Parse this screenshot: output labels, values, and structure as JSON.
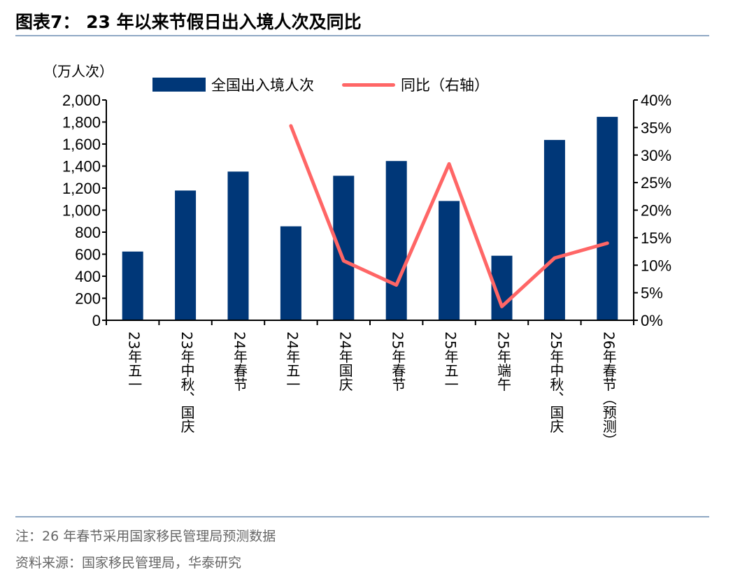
{
  "title": "图表7：  23 年以来节假日出入境人次及同比",
  "unit_label": "（万人次）",
  "note": "注：26 年春节采用国家移民管理局预测数据",
  "source": "资料来源：国家移民管理局，华泰研究",
  "chart_data": {
    "type": "bar+line",
    "categories": [
      "23年五一",
      "23年中秋、国庆",
      "24年春节",
      "24年五一",
      "24年国庆",
      "25年春节",
      "25年五一",
      "25年端午",
      "25年中秋、国庆",
      "26年春节（预测）"
    ],
    "series": [
      {
        "name": "全国出入境人次",
        "type": "bar",
        "axis": "left",
        "color": "#003778",
        "values": [
          624,
          1178,
          1350,
          853,
          1312,
          1446,
          1083,
          586,
          1637,
          1847
        ]
      },
      {
        "name": "同比（右轴）",
        "type": "line",
        "axis": "right",
        "color": "#ff6666",
        "values": [
          null,
          null,
          null,
          35.3,
          10.8,
          6.4,
          28.4,
          2.5,
          11.3,
          14.0
        ]
      }
    ],
    "ylim": [
      0,
      2000
    ],
    "yticks": [
      "0",
      "200",
      "400",
      "600",
      "800",
      "1,000",
      "1,200",
      "1,400",
      "1,600",
      "1,800",
      "2,000"
    ],
    "y2lim": [
      0,
      40
    ],
    "y2ticks": [
      "0%",
      "5%",
      "10%",
      "15%",
      "20%",
      "25%",
      "30%",
      "35%",
      "40%"
    ],
    "legend": "top",
    "grid": false
  }
}
